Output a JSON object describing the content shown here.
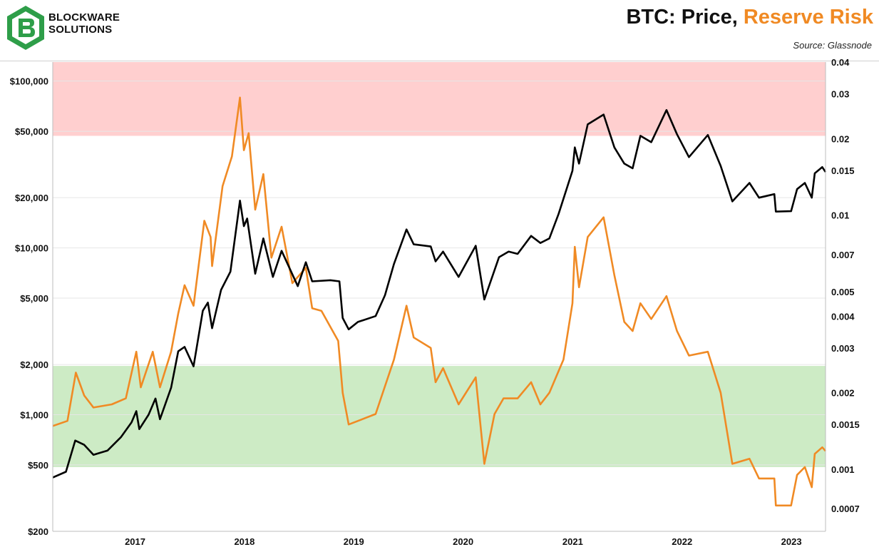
{
  "header": {
    "brand_line1": "BLOCKWARE",
    "brand_line2": "SOLUTIONS",
    "title_main": "BTC: Price, ",
    "title_accent": "Reserve Risk",
    "source": "Source: Glassnode"
  },
  "colors": {
    "price": "#000000",
    "reserve_risk": "#F08A24",
    "red_zone": "#FFCFCF",
    "green_zone": "#CDEBC5",
    "logo_green": "#2E9E49"
  },
  "chart_data": {
    "type": "line",
    "title": "BTC: Price, Reserve Risk",
    "left_axis": {
      "scale": "log",
      "range": [
        200,
        130000
      ],
      "ticks": [
        100000,
        50000,
        20000,
        10000,
        5000,
        2000,
        1000,
        500,
        200
      ],
      "tick_labels": [
        "$100,000",
        "$50,000",
        "$20,000",
        "$10,000",
        "$5,000",
        "$2,000",
        "$1,000",
        "$500",
        "$200"
      ]
    },
    "right_axis": {
      "scale": "log",
      "range": [
        0.00057,
        0.04
      ],
      "ticks": [
        0.04,
        0.03,
        0.02,
        0.015,
        0.01,
        0.007,
        0.005,
        0.004,
        0.003,
        0.002,
        0.0015,
        0.001,
        0.0007
      ],
      "tick_labels": [
        "0.04",
        "0.03",
        "0.02",
        "0.015",
        "0.01",
        "0.007",
        "0.005",
        "0.004",
        "0.003",
        "0.002",
        "0.0015",
        "0.001",
        "0.0007"
      ]
    },
    "x_axis": {
      "range": [
        "2016-04-01",
        "2023-04-25"
      ],
      "ticks": [
        "2017-01-01",
        "2018-01-01",
        "2019-01-01",
        "2020-01-01",
        "2021-01-01",
        "2022-01-01",
        "2023-01-01"
      ],
      "tick_labels": [
        "2017",
        "2018",
        "2019",
        "2020",
        "2021",
        "2022",
        "2023"
      ]
    },
    "bands": [
      {
        "zone": "red",
        "axis": "right",
        "from": 0.0205,
        "to": 0.04
      },
      {
        "zone": "green",
        "axis": "right",
        "from": 0.00102,
        "to": 0.00255
      }
    ],
    "grid": true,
    "series": [
      {
        "name": "Price",
        "axis": "left",
        "points": [
          [
            "2016-04-01",
            420
          ],
          [
            "2016-05-15",
            455
          ],
          [
            "2016-06-15",
            700
          ],
          [
            "2016-07-15",
            660
          ],
          [
            "2016-08-15",
            575
          ],
          [
            "2016-10-01",
            610
          ],
          [
            "2016-11-15",
            735
          ],
          [
            "2016-12-20",
            900
          ],
          [
            "2017-01-05",
            1050
          ],
          [
            "2017-01-15",
            820
          ],
          [
            "2017-02-15",
            1000
          ],
          [
            "2017-03-10",
            1250
          ],
          [
            "2017-03-25",
            940
          ],
          [
            "2017-05-01",
            1450
          ],
          [
            "2017-05-25",
            2400
          ],
          [
            "2017-06-15",
            2550
          ],
          [
            "2017-07-15",
            1950
          ],
          [
            "2017-08-15",
            4200
          ],
          [
            "2017-09-01",
            4700
          ],
          [
            "2017-09-15",
            3300
          ],
          [
            "2017-10-15",
            5600
          ],
          [
            "2017-11-15",
            7200
          ],
          [
            "2017-12-17",
            19200
          ],
          [
            "2017-12-30",
            13500
          ],
          [
            "2018-01-10",
            15000
          ],
          [
            "2018-02-06",
            7000
          ],
          [
            "2018-03-05",
            11400
          ],
          [
            "2018-04-06",
            6700
          ],
          [
            "2018-05-05",
            9600
          ],
          [
            "2018-06-28",
            5900
          ],
          [
            "2018-07-25",
            8200
          ],
          [
            "2018-08-15",
            6300
          ],
          [
            "2018-10-15",
            6400
          ],
          [
            "2018-11-14",
            6300
          ],
          [
            "2018-11-25",
            3800
          ],
          [
            "2018-12-15",
            3250
          ],
          [
            "2019-01-15",
            3600
          ],
          [
            "2019-03-15",
            3900
          ],
          [
            "2019-04-15",
            5200
          ],
          [
            "2019-05-15",
            8000
          ],
          [
            "2019-06-26",
            12900
          ],
          [
            "2019-07-20",
            10500
          ],
          [
            "2019-09-15",
            10200
          ],
          [
            "2019-10-01",
            8300
          ],
          [
            "2019-10-26",
            9500
          ],
          [
            "2019-12-17",
            6700
          ],
          [
            "2020-02-12",
            10300
          ],
          [
            "2020-03-12",
            4900
          ],
          [
            "2020-04-30",
            8800
          ],
          [
            "2020-06-01",
            9500
          ],
          [
            "2020-07-01",
            9200
          ],
          [
            "2020-08-15",
            11800
          ],
          [
            "2020-09-15",
            10700
          ],
          [
            "2020-10-15",
            11400
          ],
          [
            "2020-11-15",
            16000
          ],
          [
            "2020-12-31",
            29000
          ],
          [
            "2021-01-08",
            40000
          ],
          [
            "2021-01-22",
            32000
          ],
          [
            "2021-02-20",
            55000
          ],
          [
            "2021-04-14",
            63000
          ],
          [
            "2021-05-20",
            40000
          ],
          [
            "2021-06-22",
            32000
          ],
          [
            "2021-07-20",
            30000
          ],
          [
            "2021-08-15",
            47000
          ],
          [
            "2021-09-20",
            43000
          ],
          [
            "2021-11-10",
            67000
          ],
          [
            "2021-12-15",
            48000
          ],
          [
            "2022-01-24",
            35000
          ],
          [
            "2022-03-28",
            47500
          ],
          [
            "2022-05-10",
            31000
          ],
          [
            "2022-06-18",
            19000
          ],
          [
            "2022-08-14",
            24500
          ],
          [
            "2022-09-15",
            20000
          ],
          [
            "2022-11-05",
            21000
          ],
          [
            "2022-11-10",
            16500
          ],
          [
            "2022-12-31",
            16600
          ],
          [
            "2023-01-20",
            22500
          ],
          [
            "2023-02-15",
            24500
          ],
          [
            "2023-03-10",
            20000
          ],
          [
            "2023-03-20",
            28000
          ],
          [
            "2023-04-14",
            30500
          ],
          [
            "2023-04-25",
            28500
          ]
        ]
      },
      {
        "name": "Reserve Risk",
        "axis": "right",
        "points": [
          [
            "2016-04-01",
            0.00148
          ],
          [
            "2016-05-20",
            0.00155
          ],
          [
            "2016-06-17",
            0.0024
          ],
          [
            "2016-07-15",
            0.00195
          ],
          [
            "2016-08-15",
            0.00175
          ],
          [
            "2016-10-15",
            0.0018
          ],
          [
            "2016-12-01",
            0.0019
          ],
          [
            "2017-01-05",
            0.0029
          ],
          [
            "2017-01-20",
            0.0021
          ],
          [
            "2017-03-01",
            0.0029
          ],
          [
            "2017-03-25",
            0.0021
          ],
          [
            "2017-05-01",
            0.0029
          ],
          [
            "2017-05-25",
            0.0041
          ],
          [
            "2017-06-15",
            0.0053
          ],
          [
            "2017-07-15",
            0.0044
          ],
          [
            "2017-08-20",
            0.0095
          ],
          [
            "2017-09-10",
            0.0082
          ],
          [
            "2017-09-15",
            0.0063
          ],
          [
            "2017-10-20",
            0.013
          ],
          [
            "2017-11-20",
            0.017
          ],
          [
            "2017-12-17",
            0.029
          ],
          [
            "2017-12-30",
            0.018
          ],
          [
            "2018-01-15",
            0.021
          ],
          [
            "2018-02-06",
            0.0105
          ],
          [
            "2018-03-05",
            0.0145
          ],
          [
            "2018-04-01",
            0.0068
          ],
          [
            "2018-05-05",
            0.009
          ],
          [
            "2018-06-10",
            0.0054
          ],
          [
            "2018-07-25",
            0.0062
          ],
          [
            "2018-08-15",
            0.0043
          ],
          [
            "2018-09-15",
            0.0042
          ],
          [
            "2018-11-10",
            0.0032
          ],
          [
            "2018-11-25",
            0.002
          ],
          [
            "2018-12-15",
            0.0015
          ],
          [
            "2019-01-15",
            0.00155
          ],
          [
            "2019-03-15",
            0.00165
          ],
          [
            "2019-05-15",
            0.0027
          ],
          [
            "2019-06-26",
            0.0044
          ],
          [
            "2019-07-20",
            0.0033
          ],
          [
            "2019-09-15",
            0.003
          ],
          [
            "2019-10-01",
            0.0022
          ],
          [
            "2019-10-26",
            0.0025
          ],
          [
            "2019-12-17",
            0.0018
          ],
          [
            "2020-02-12",
            0.0023
          ],
          [
            "2020-03-12",
            0.00105
          ],
          [
            "2020-04-15",
            0.00165
          ],
          [
            "2020-05-15",
            0.0019
          ],
          [
            "2020-07-01",
            0.0019
          ],
          [
            "2020-08-15",
            0.0022
          ],
          [
            "2020-09-15",
            0.0018
          ],
          [
            "2020-10-15",
            0.002
          ],
          [
            "2020-12-01",
            0.0027
          ],
          [
            "2020-12-31",
            0.0045
          ],
          [
            "2021-01-08",
            0.0075
          ],
          [
            "2021-01-22",
            0.0052
          ],
          [
            "2021-02-20",
            0.0082
          ],
          [
            "2021-04-14",
            0.0098
          ],
          [
            "2021-05-20",
            0.0058
          ],
          [
            "2021-06-22",
            0.0038
          ],
          [
            "2021-07-20",
            0.0035
          ],
          [
            "2021-08-15",
            0.0045
          ],
          [
            "2021-09-20",
            0.0039
          ],
          [
            "2021-11-10",
            0.0048
          ],
          [
            "2021-12-15",
            0.0035
          ],
          [
            "2022-01-24",
            0.0028
          ],
          [
            "2022-03-28",
            0.0029
          ],
          [
            "2022-05-10",
            0.002
          ],
          [
            "2022-06-18",
            0.00105
          ],
          [
            "2022-08-14",
            0.0011
          ],
          [
            "2022-09-15",
            0.00092
          ],
          [
            "2022-11-05",
            0.00092
          ],
          [
            "2022-11-10",
            0.00072
          ],
          [
            "2022-12-31",
            0.00072
          ],
          [
            "2023-01-20",
            0.00095
          ],
          [
            "2023-02-15",
            0.00102
          ],
          [
            "2023-03-10",
            0.00085
          ],
          [
            "2023-03-20",
            0.00115
          ],
          [
            "2023-04-14",
            0.00122
          ],
          [
            "2023-04-25",
            0.00118
          ]
        ]
      }
    ]
  }
}
